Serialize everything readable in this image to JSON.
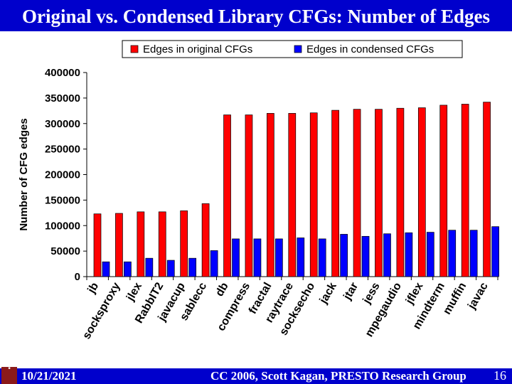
{
  "title": "Original vs. Condensed Library CFGs: Number of Edges",
  "footer": {
    "date": "10/21/2021",
    "text": "CC 2006, Scott Kagan, PRESTO Research Group",
    "page": "16"
  },
  "colors": {
    "bar_bar": "#0000cc",
    "series_original": "#ff0000",
    "series_condensed": "#0000ff"
  },
  "chart_data": {
    "type": "bar",
    "title": "",
    "xlabel": "",
    "ylabel": "Number of CFG edges",
    "ylim": [
      0,
      400000
    ],
    "yticks": [
      0,
      50000,
      100000,
      150000,
      200000,
      250000,
      300000,
      350000,
      400000
    ],
    "ytick_labels": [
      "0",
      "50000",
      "100000",
      "150000",
      "200000",
      "250000",
      "300000",
      "350000",
      "400000"
    ],
    "legend": "top",
    "categories": [
      "jb",
      "socksproxy",
      "jlex",
      "RabbIT2",
      "javacup",
      "sablecc",
      "db",
      "compress",
      "fractal",
      "raytrace",
      "socksecho",
      "jack",
      "jtar",
      "jess",
      "mpegaudio",
      "jflex",
      "mindterm",
      "muffin",
      "javac"
    ],
    "series": [
      {
        "name": "Edges in original CFGs",
        "color": "#ff0000",
        "values": [
          123000,
          124000,
          127000,
          127000,
          129000,
          143000,
          317000,
          317000,
          320000,
          320000,
          321000,
          326000,
          328000,
          328000,
          330000,
          331000,
          336000,
          338000,
          342000
        ]
      },
      {
        "name": "Edges in condensed CFGs",
        "color": "#0000ff",
        "values": [
          29000,
          29000,
          36000,
          32000,
          36000,
          51000,
          74000,
          74000,
          74000,
          76000,
          74000,
          83000,
          79000,
          84000,
          86000,
          87000,
          91000,
          91000,
          98000
        ]
      }
    ]
  }
}
